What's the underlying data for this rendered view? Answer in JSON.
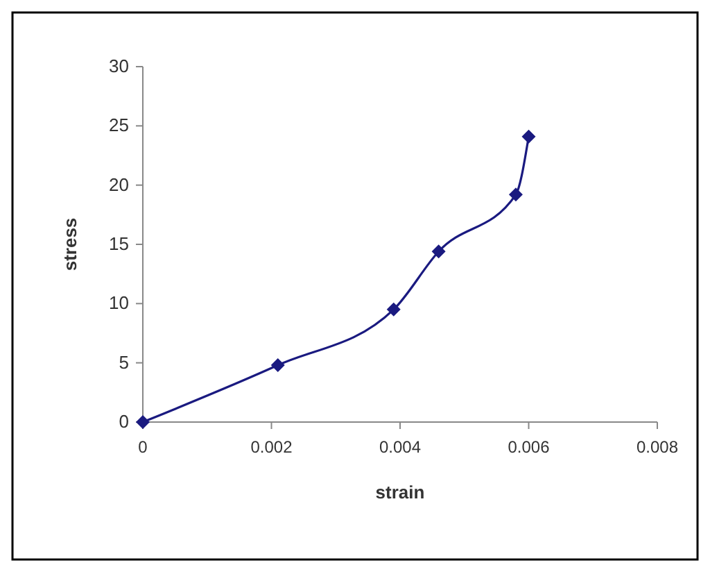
{
  "chart_data": {
    "type": "line",
    "xlabel": "strain",
    "ylabel": "stress",
    "x": [
      0,
      0.0021,
      0.0039,
      0.0046,
      0.0058,
      0.006
    ],
    "series": [
      {
        "color": "#1a1a80",
        "values": [
          0,
          4.8,
          9.5,
          14.4,
          19.2,
          24.1
        ]
      }
    ],
    "xlim": [
      0,
      0.008
    ],
    "xticks": [
      0,
      0.002,
      0.004,
      0.006,
      0.008
    ],
    "ylim": [
      0,
      30
    ],
    "yticks": [
      0,
      5,
      10,
      15,
      20,
      25,
      30
    ],
    "marker": "diamond",
    "line_style": "solid"
  }
}
